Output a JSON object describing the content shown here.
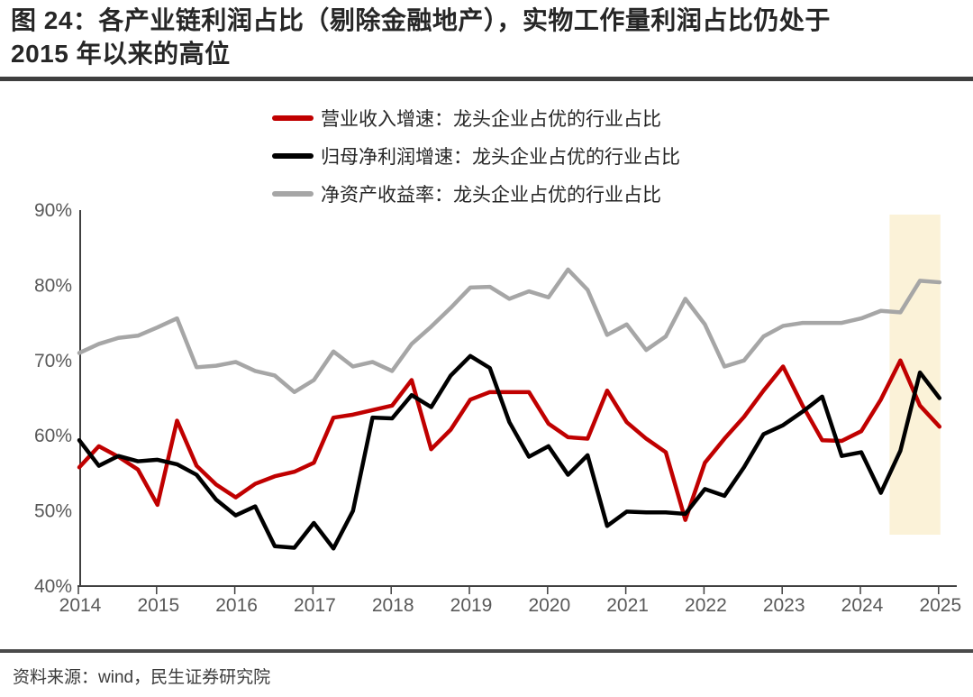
{
  "title": {
    "line1": "图 24：各产业链利润占比（剔除金融地产），实物工作量利润占比仍处于",
    "line2": "2015 年以来的高位"
  },
  "source": "资料来源：wind，民生证券研究院",
  "chart_data": {
    "type": "line",
    "x_unit": "quarter",
    "x_start": "2014Q1",
    "x_end": "2025Q1",
    "x_tick_labels": [
      "2014",
      "2015",
      "2016",
      "2017",
      "2018",
      "2019",
      "2020",
      "2021",
      "2022",
      "2023",
      "2024",
      "2025"
    ],
    "ylim": [
      40,
      90
    ],
    "y_tick_step": 10,
    "y_tick_labels": [
      "40%",
      "50%",
      "60%",
      "70%",
      "80%",
      "90%"
    ],
    "grid": "off",
    "legend_position": "top",
    "axis_color": "#404040",
    "tick_label_color": "#595959",
    "highlight_band": {
      "from": "2024Q3",
      "to": "2025Q1",
      "color": "#FBF2D8"
    },
    "series": [
      {
        "name": "营业收入增速：龙头企业占优的行业占比",
        "color": "#C00000",
        "values": [
          55.8,
          58.6,
          57.2,
          55.5,
          50.8,
          62.0,
          56.0,
          53.5,
          51.8,
          53.6,
          54.6,
          55.2,
          56.4,
          62.4,
          62.8,
          63.4,
          64.0,
          67.4,
          58.2,
          60.8,
          64.8,
          65.8,
          65.8,
          65.8,
          61.6,
          59.8,
          59.6,
          66.0,
          61.8,
          59.6,
          57.8,
          48.8,
          56.4,
          59.6,
          62.5,
          66.0,
          69.2,
          64.0,
          59.4,
          59.3,
          60.6,
          64.8,
          70.0,
          64.0,
          61.2
        ]
      },
      {
        "name": "归母净利润增速：龙头企业占优的行业占比",
        "color": "#000000",
        "values": [
          59.4,
          56.0,
          57.3,
          56.6,
          56.8,
          56.2,
          54.8,
          51.5,
          49.4,
          50.6,
          45.3,
          45.1,
          48.4,
          45.0,
          50.0,
          62.4,
          62.3,
          65.4,
          63.8,
          68.0,
          70.6,
          69.0,
          61.8,
          57.2,
          58.6,
          54.8,
          57.4,
          48.0,
          49.9,
          49.8,
          49.8,
          49.6,
          52.9,
          52.0,
          55.8,
          60.2,
          61.4,
          63.2,
          65.2,
          57.3,
          57.8,
          52.4,
          58.0,
          68.4,
          65.0
        ]
      },
      {
        "name": "净资产收益率：龙头企业占优的行业占比",
        "color": "#A6A6A6",
        "values": [
          71.0,
          72.2,
          73.0,
          73.3,
          74.4,
          75.6,
          69.1,
          69.3,
          69.8,
          68.6,
          68.0,
          65.8,
          67.4,
          71.2,
          69.2,
          69.8,
          68.6,
          72.2,
          74.5,
          77.0,
          79.7,
          79.8,
          78.2,
          79.2,
          78.4,
          82.1,
          79.4,
          73.4,
          74.8,
          71.4,
          73.2,
          78.2,
          74.8,
          69.2,
          70.0,
          73.2,
          74.6,
          75.0,
          75.0,
          75.0,
          75.6,
          76.6,
          76.4,
          80.6,
          80.4
        ]
      }
    ]
  }
}
